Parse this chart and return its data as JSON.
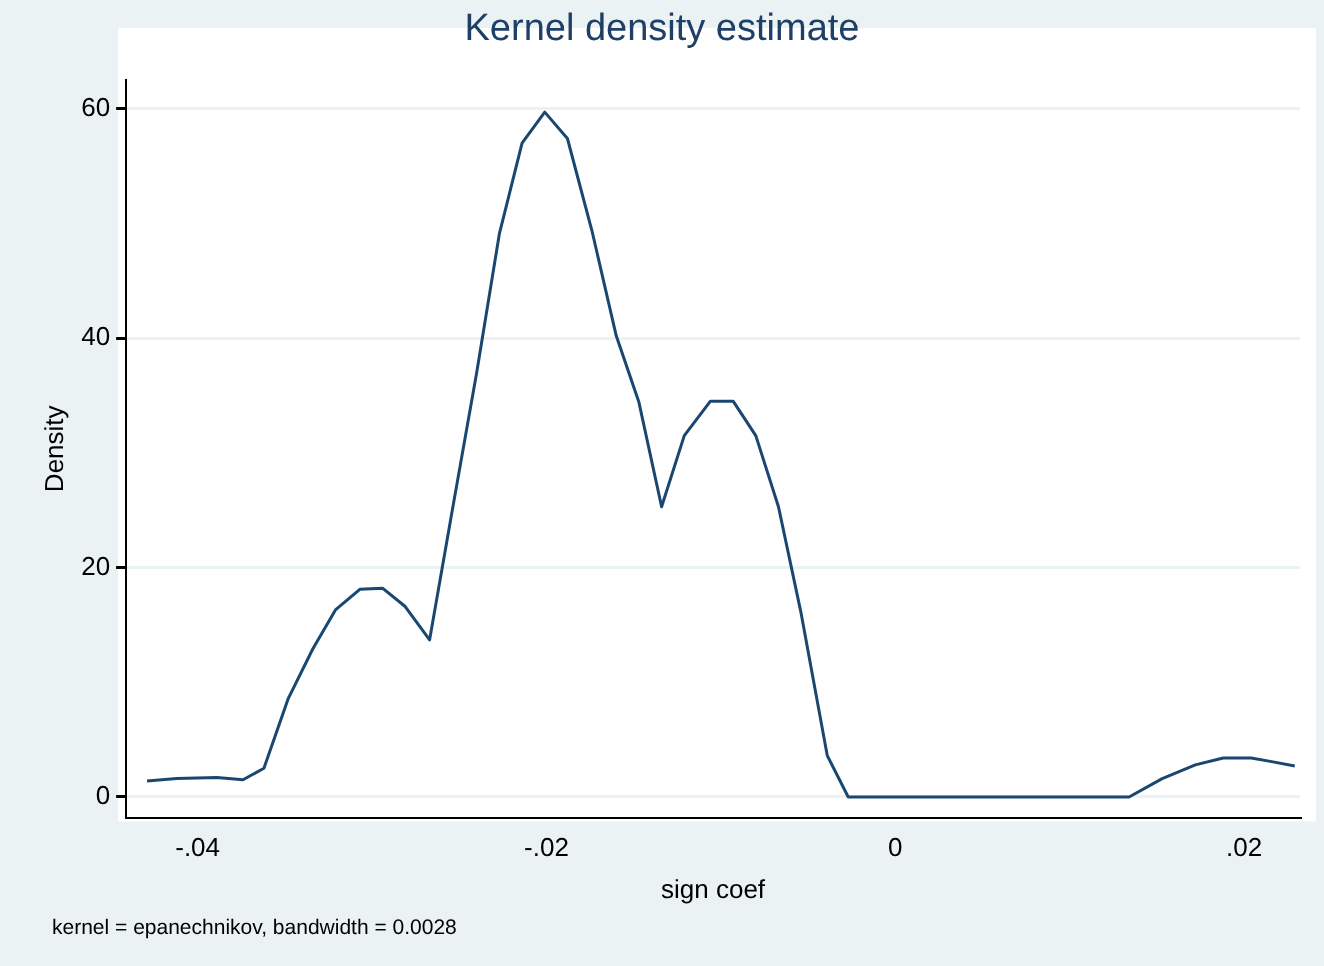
{
  "chart_data": {
    "type": "line",
    "title": "Kernel density estimate",
    "xlabel": "sign coef",
    "ylabel": "Density",
    "annotations": [
      "kernel = epanechnikov, bandwidth = 0.0028"
    ],
    "x": [
      -0.0429,
      -0.0412,
      -0.0389,
      -0.0374,
      -0.0362,
      -0.0348,
      -0.0334,
      -0.0321,
      -0.0307,
      -0.0294,
      -0.0281,
      -0.0267,
      -0.0254,
      -0.024,
      -0.0227,
      -0.0214,
      -0.0201,
      -0.0188,
      -0.0174,
      -0.016,
      -0.0147,
      -0.0134,
      -0.0121,
      -0.0106,
      -0.0093,
      -0.008,
      -0.0067,
      -0.0054,
      -0.0039,
      -0.0027,
      0.0134,
      0.0153,
      0.0172,
      0.0188,
      0.0204,
      0.0215,
      0.0229
    ],
    "series": [
      {
        "color": "#1a476f",
        "values": [
          1.4,
          1.6,
          1.7,
          1.5,
          2.5,
          8.6,
          12.9,
          16.3,
          18.1,
          18.2,
          16.6,
          13.7,
          25,
          37,
          49.1,
          57,
          59.7,
          57.4,
          49.4,
          40.2,
          34.4,
          25.3,
          31.5,
          34.5,
          34.5,
          31.5,
          25.3,
          16,
          3.6,
          0,
          0,
          1.6,
          2.8,
          3.4,
          3.4,
          3.1,
          2.7
        ]
      }
    ],
    "xlim": [
      -0.0441,
      0.0232
    ],
    "xticks": [
      {
        "value": -0.04,
        "label": "-.04"
      },
      {
        "value": -0.02,
        "label": "-.02"
      },
      0,
      {
        "value": 0.02,
        "label": ".02"
      }
    ],
    "ylim": [
      -1.8,
      62.5
    ],
    "yticks": [
      0,
      20,
      40,
      60
    ],
    "grid": "y",
    "legend": false,
    "marker": "none",
    "line_style": "solid"
  }
}
